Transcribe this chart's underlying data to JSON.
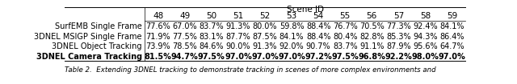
{
  "scene_ids": [
    "48",
    "49",
    "50",
    "51",
    "52",
    "53",
    "54",
    "55",
    "56",
    "57",
    "58",
    "59"
  ],
  "row_labels": [
    "SurfEMB Single Frame",
    "3DNEL MSIGP Single Frame",
    "3DNEL Object Tracking",
    "3DNEL Camera Tracking"
  ],
  "values": [
    [
      "77.6%",
      "67.0%",
      "83.7%",
      "91.3%",
      "80.0%",
      "59.8%",
      "88.4%",
      "76.7%",
      "70.5%",
      "77.3%",
      "92.4%",
      "84.1%"
    ],
    [
      "71.9%",
      "77.5%",
      "83.1%",
      "87.7%",
      "87.5%",
      "84.1%",
      "88.4%",
      "80.4%",
      "82.8%",
      "85.3%",
      "94.3%",
      "86.4%"
    ],
    [
      "73.9%",
      "78.5%",
      "84.6%",
      "90.0%",
      "91.3%",
      "92.0%",
      "90.7%",
      "83.7%",
      "91.1%",
      "87.9%",
      "95.6%",
      "64.7%"
    ],
    [
      "81.5%",
      "94.7%",
      "97.5%",
      "97.0%",
      "97.0%",
      "97.0%",
      "97.2%",
      "97.5%",
      "96.8%",
      "92.2%",
      "98.0%",
      "97.0%"
    ]
  ],
  "bold_row": 3,
  "header_label": "Scene ID",
  "bg_color": "#ffffff",
  "font_size": 7.0,
  "header_font_size": 7.5,
  "col_header_font_size": 7.5,
  "caption": "Table 2.  Extending 3DNEL tracking to demonstrate tracking in scenes of more complex environments and"
}
